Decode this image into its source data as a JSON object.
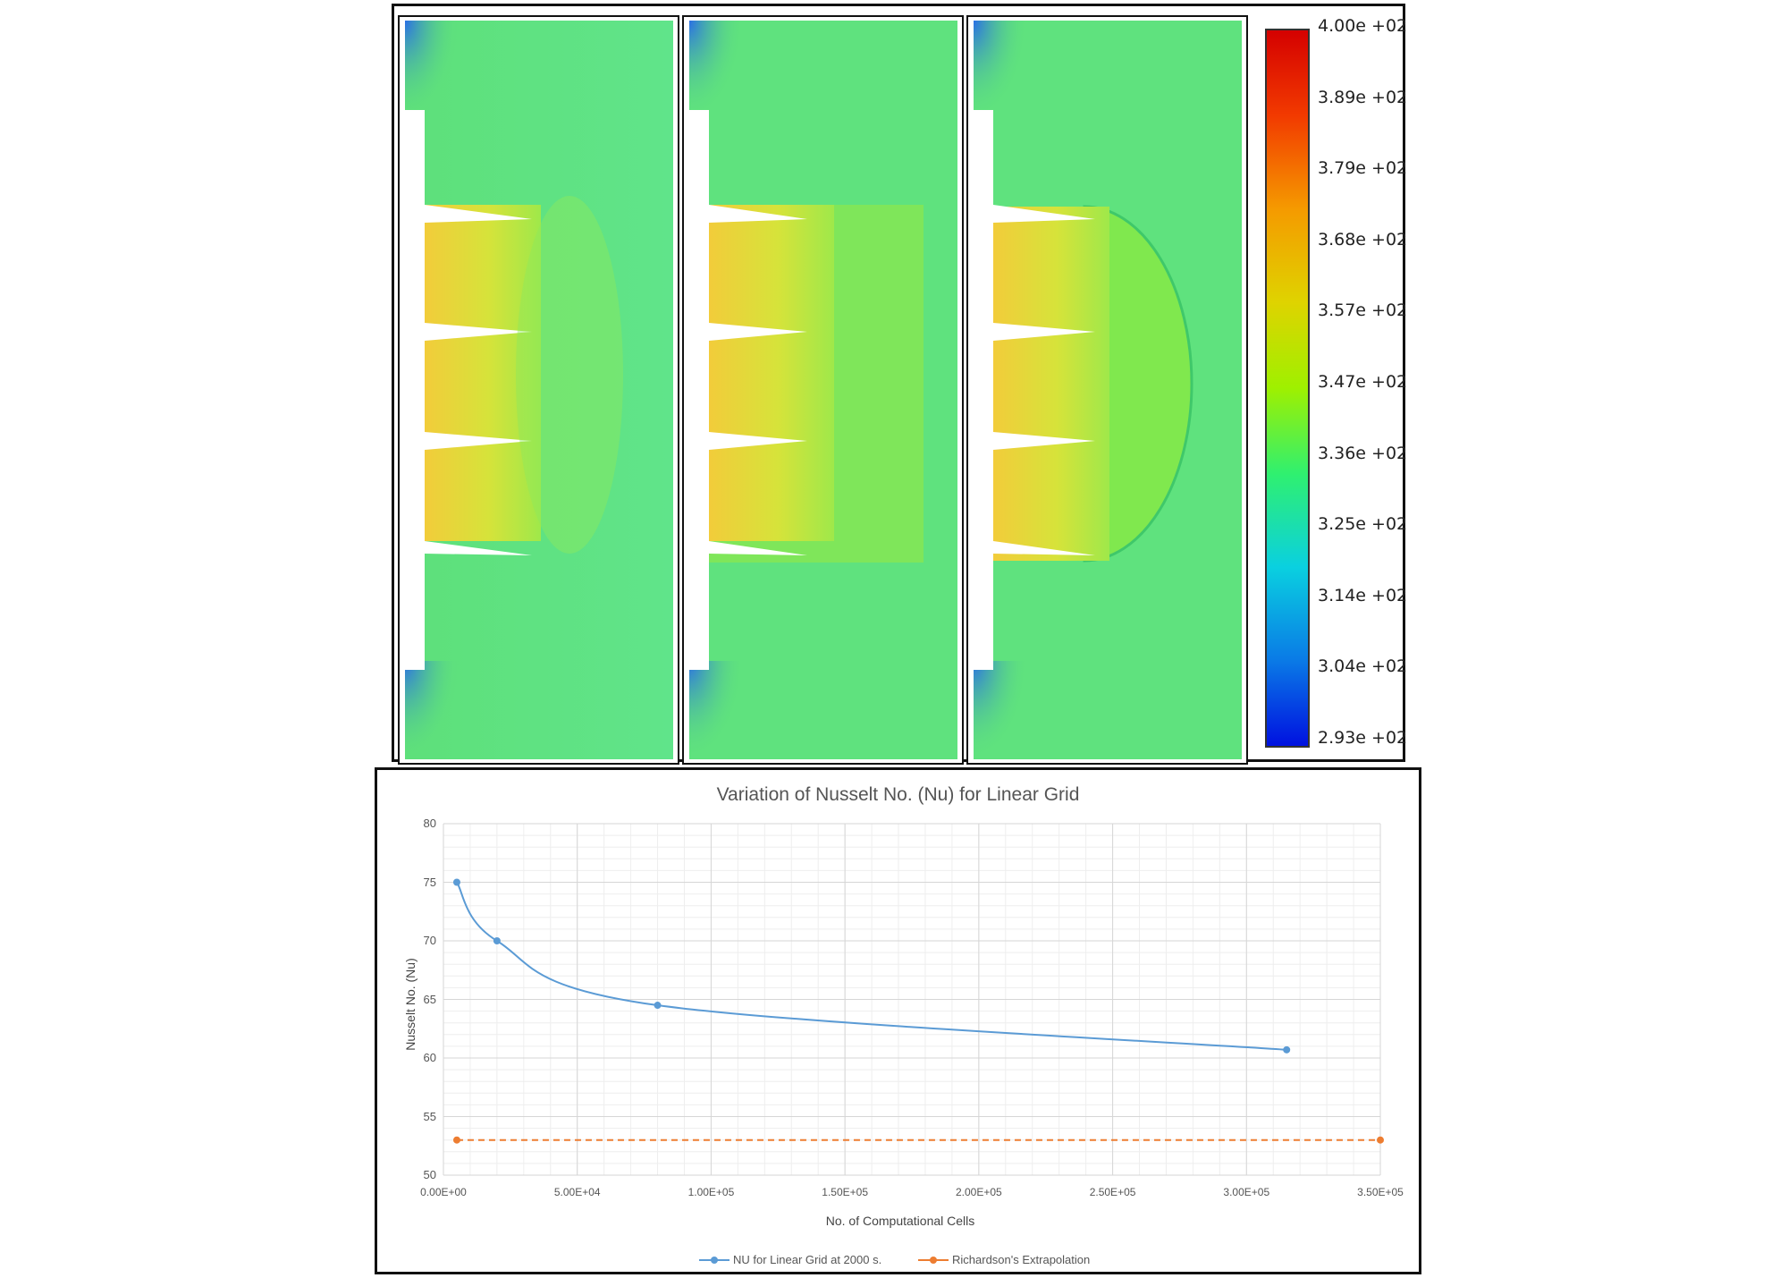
{
  "figure": {
    "panels": [
      {
        "name": "simulation-panel-1",
        "domain_shape": "linear"
      },
      {
        "name": "simulation-panel-2",
        "domain_shape": "rectangular"
      },
      {
        "name": "simulation-panel-3",
        "domain_shape": "semicircular"
      }
    ],
    "colorbar": {
      "ticks": [
        "4.00e +02",
        "3.89e +02",
        "3.79e +02",
        "3.68e +02",
        "3.57e +02",
        "3.47e +02",
        "3.36e +02",
        "3.25e +02",
        "3.14e +02",
        "3.04e +02",
        "2.93e +02"
      ],
      "colors": [
        "#d40000",
        "#f25a00",
        "#f7a000",
        "#dfd300",
        "#9ff000",
        "#2ff070",
        "#0ad0e0",
        "#0a7ae6",
        "#0010e0"
      ]
    }
  },
  "chart_data": {
    "type": "line",
    "title": "Variation of Nusselt No. (Nu) for Linear Grid",
    "xlabel": "No. of Computational Cells",
    "ylabel": "Nusselt No. (Nu)",
    "xlim": [
      0,
      350000
    ],
    "ylim": [
      50,
      80
    ],
    "x_ticks": [
      "0.00E+00",
      "5.00E+04",
      "1.00E+05",
      "1.50E+05",
      "2.00E+05",
      "2.50E+05",
      "3.00E+05",
      "3.50E+05"
    ],
    "y_ticks": [
      "80",
      "75",
      "70",
      "65",
      "60",
      "55",
      "50"
    ],
    "series": [
      {
        "name": "NU for Linear Grid at  2000 s.",
        "color": "#5b9bd5",
        "style": "solid",
        "x": [
          5000,
          20000,
          80000,
          315000
        ],
        "y": [
          75.0,
          70.0,
          64.5,
          60.7
        ]
      },
      {
        "name": "Richardson's Extrapolation",
        "color": "#ed7d31",
        "style": "dashed",
        "x": [
          5000,
          350000
        ],
        "y": [
          53.0,
          53.0
        ]
      }
    ],
    "legend_position": "bottom"
  }
}
